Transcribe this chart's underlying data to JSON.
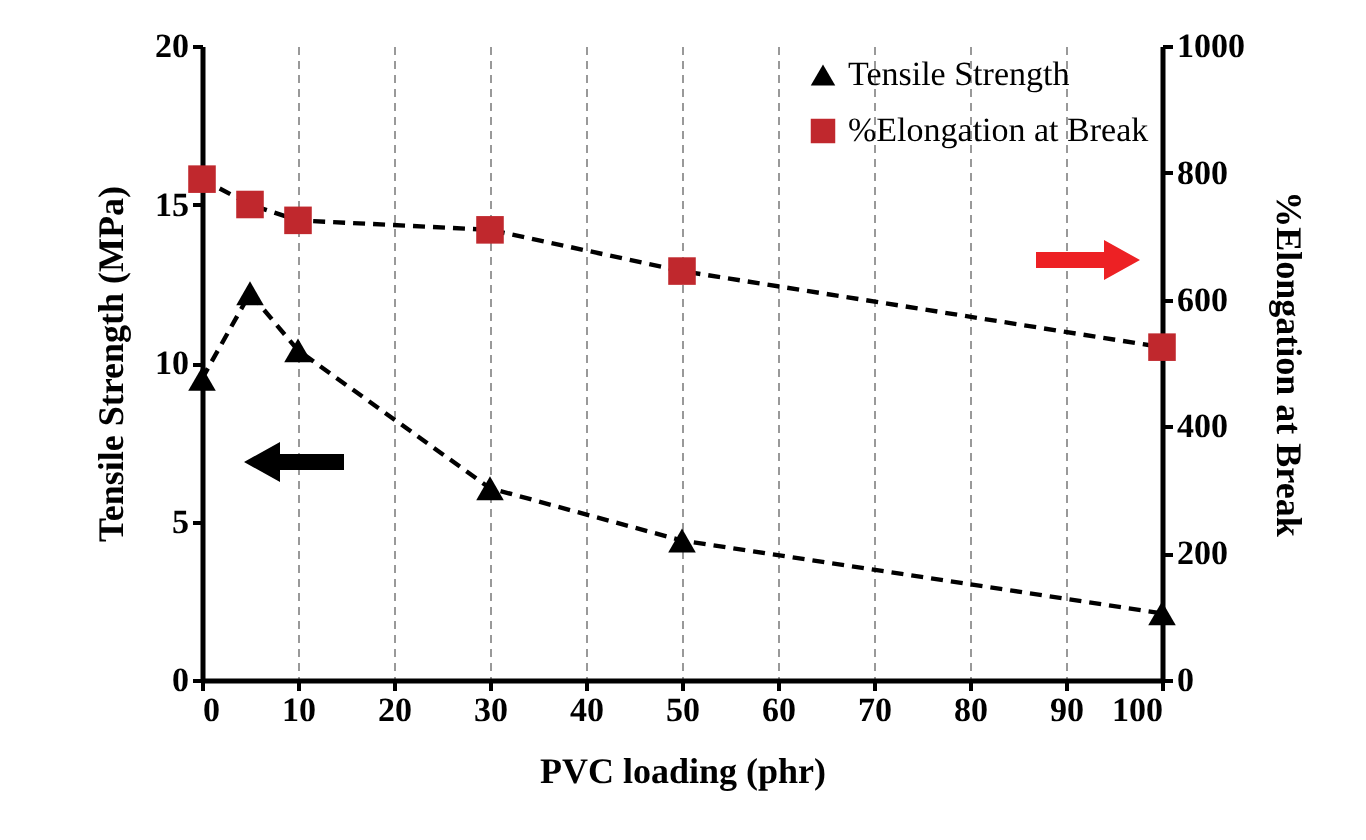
{
  "chart_data": {
    "type": "line",
    "xlabel": "PVC loading (phr)",
    "ylabel": "Tensile Strength (MPa)",
    "y2label": "%Elongation at Break",
    "x": [
      0,
      5,
      10,
      30,
      50,
      100
    ],
    "series": [
      {
        "name": "Tensile Strength",
        "color": "#000000",
        "marker": "triangle",
        "values": [
          9.5,
          12.2,
          10.4,
          6.05,
          4.4,
          2.1
        ]
      },
      {
        "name": "%Elongation at Break",
        "color": "#c0282d",
        "marker": "square",
        "axis": "y2",
        "values": [
          790,
          750,
          725,
          710,
          645,
          525
        ]
      }
    ],
    "xlim": [
      0,
      100
    ],
    "xticks": [
      0,
      10,
      20,
      30,
      40,
      50,
      60,
      70,
      80,
      90,
      100
    ],
    "ylim": [
      0,
      20
    ],
    "yticks": [
      0,
      5,
      10,
      15,
      20
    ],
    "y2lim": [
      0,
      1000
    ],
    "y2ticks": [
      0,
      200,
      400,
      600,
      800,
      1000
    ],
    "grid": "x",
    "legend": "top right",
    "line_style": "dashed"
  }
}
